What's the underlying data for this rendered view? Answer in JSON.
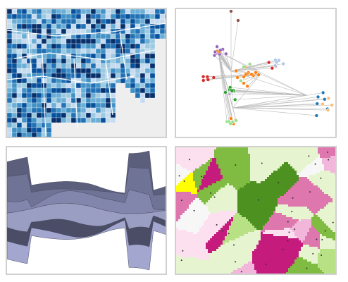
{
  "gallery": {
    "tiles": [
      {
        "name": "choropleth-map-thumbnail"
      },
      {
        "name": "force-graph-thumbnail"
      },
      {
        "name": "streamgraph-thumbnail"
      },
      {
        "name": "voronoi-thumbnail"
      }
    ]
  },
  "colors": {
    "border": "#d0d0d0",
    "map_blues": [
      "#08306b",
      "#08519c",
      "#2171b5",
      "#4292c6",
      "#6baed6",
      "#9ecae1",
      "#c6dbef"
    ],
    "map_background": "#eeeeee",
    "stream_fills": [
      "#5c5f7c",
      "#6f7396",
      "#8286ac",
      "#9a9ec3",
      "#4b4d66",
      "#a3a7d0"
    ],
    "voronoi_fills": [
      "#c51b7d",
      "#de77ae",
      "#f1b6da",
      "#fde0ef",
      "#f7f7f7",
      "#e6f5d0",
      "#b8e186",
      "#7fbc41",
      "#4d9221",
      "#ffff00"
    ],
    "graph_node_colors": [
      "#1f77b4",
      "#ff7f0e",
      "#2ca02c",
      "#d62728",
      "#9467bd",
      "#8c564b",
      "#aec7e8",
      "#ffbb78",
      "#98df8a",
      "#c5b0d5"
    ]
  }
}
